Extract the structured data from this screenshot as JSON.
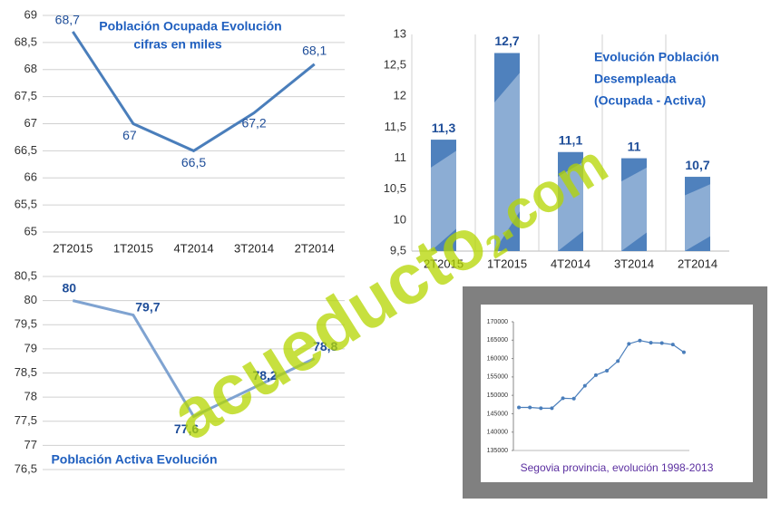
{
  "chart_data": [
    {
      "type": "line",
      "title": "Población Ocupada Evolución",
      "subtitle": "cifras en miles",
      "categories": [
        "2T2015",
        "1T2015",
        "4T2014",
        "3T2014",
        "2T2014"
      ],
      "values": [
        68.7,
        67,
        66.5,
        67.2,
        68.1
      ],
      "value_labels": [
        "68,7",
        "67",
        "66,5",
        "67,2",
        "68,1"
      ],
      "color": "#4a7ebb",
      "ylim": [
        65,
        69
      ],
      "yticks": [
        65,
        {
          "value": 65.5,
          "label": "65,5"
        },
        66,
        {
          "value": 66.5,
          "label": "66,5"
        },
        67,
        {
          "value": 67.5,
          "label": "67,5"
        },
        68,
        {
          "value": 68.5,
          "label": "68,5"
        },
        69
      ],
      "grid": true
    },
    {
      "type": "bar",
      "title": [
        "Evolución Población",
        "Desempleada",
        "(Ocupada - Activa)"
      ],
      "categories": [
        "2T2015",
        "1T2015",
        "4T2014",
        "3T2014",
        "2T2014"
      ],
      "values": [
        11.3,
        12.7,
        11.1,
        11,
        10.7
      ],
      "value_labels": [
        "11,3",
        "12,7",
        "11,1",
        "11",
        "10,7"
      ],
      "color": "#4f81bd",
      "ylim": [
        9.5,
        13
      ],
      "yticks": [
        {
          "value": 9.5,
          "label": "9,5"
        },
        10,
        {
          "value": 10.5,
          "label": "10,5"
        },
        11,
        {
          "value": 11.5,
          "label": "11,5"
        },
        12,
        {
          "value": 12.5,
          "label": "12,5"
        },
        13
      ],
      "grid": false
    },
    {
      "type": "line",
      "title": "Población Activa Evolución",
      "categories": [
        null,
        null,
        null,
        null,
        null
      ],
      "values": [
        80,
        79.7,
        77.6,
        78.2,
        78.8
      ],
      "value_labels": [
        "80",
        "79,7",
        "77,6",
        "78,2",
        "78,8"
      ],
      "color": "#7fa3d1",
      "ylim": [
        76.5,
        80.5
      ],
      "yticks": [
        {
          "value": 76.5,
          "label": "76,5"
        },
        77,
        {
          "value": 77.5,
          "label": "77,5"
        },
        78,
        {
          "value": 78.5,
          "label": "78,5"
        },
        79,
        {
          "value": 79.5,
          "label": "79,5"
        },
        80,
        {
          "value": 80.5,
          "label": "80,5"
        }
      ],
      "grid": true
    },
    {
      "type": "line",
      "title": "Segovia provincia, evolución 1998-2013",
      "categories": [
        null,
        null,
        null,
        null,
        null,
        null,
        null,
        null,
        null,
        null,
        null,
        null,
        null,
        null,
        null,
        null
      ],
      "values": [
        146700,
        146700,
        146500,
        146500,
        149200,
        149100,
        152600,
        155500,
        156700,
        159300,
        164000,
        164900,
        164300,
        164200,
        163800,
        161700
      ],
      "color": "#4a7ebb",
      "ylim": [
        135000,
        170000
      ],
      "yticks": [
        135000,
        140000,
        145000,
        150000,
        155000,
        160000,
        165000,
        170000
      ],
      "grid": false
    }
  ],
  "watermark": {
    "text": "acueducto",
    "subscript": "2",
    "suffix": ".com"
  }
}
